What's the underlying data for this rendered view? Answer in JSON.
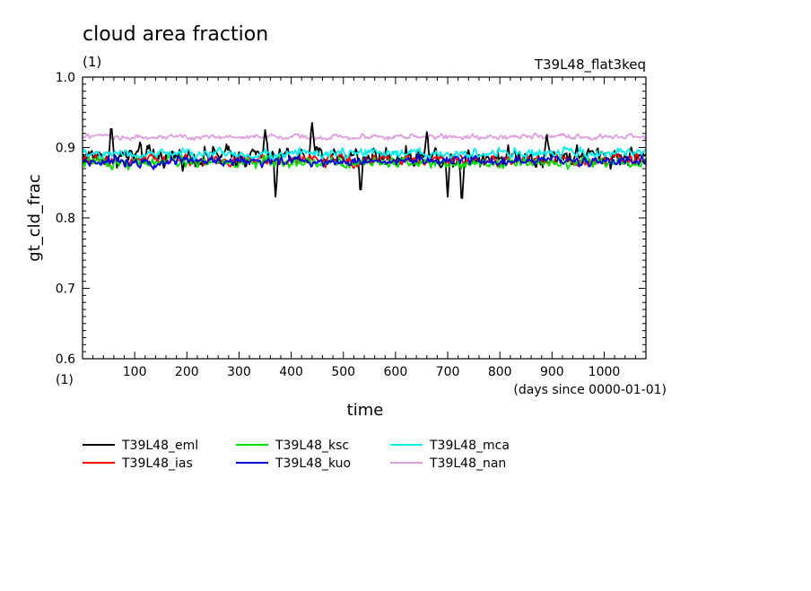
{
  "chart_data": {
    "type": "line",
    "title": "cloud area fraction",
    "units": "(1)",
    "experiment": "T39L48_flat3keq",
    "xlabel": "time",
    "xunits": "(days since 0000-01-01)",
    "ylabel": "gt_cld_frac",
    "yunits": "(1)",
    "xlim": [
      0,
      1080
    ],
    "ylim": [
      0.6,
      1.0
    ],
    "xticks": [
      100,
      200,
      300,
      400,
      500,
      600,
      700,
      800,
      900,
      1000
    ],
    "xtick_labels": [
      "100",
      "200",
      "300",
      "400",
      "500",
      "600",
      "700",
      "800",
      "900",
      "1000"
    ],
    "yticks": [
      0.6,
      0.7,
      0.8,
      0.9,
      1.0
    ],
    "ytick_labels": [
      "0.6",
      "0.7",
      "0.8",
      "0.9",
      "1.0"
    ],
    "grid": false,
    "legend_position": "bottom",
    "series": [
      {
        "name": "T39L48_eml",
        "color": "#000000",
        "mean": 0.888,
        "amplitude": 0.022,
        "dips": [
          [
            370,
            0.83
          ],
          [
            533,
            0.835
          ],
          [
            700,
            0.83
          ],
          [
            727,
            0.822
          ]
        ],
        "peaks": [
          [
            55,
            0.93
          ],
          [
            440,
            0.935
          ],
          [
            350,
            0.925
          ],
          [
            660,
            0.922
          ],
          [
            890,
            0.918
          ]
        ]
      },
      {
        "name": "T39L48_ias",
        "color": "#ff0000",
        "mean": 0.882,
        "amplitude": 0.012,
        "dips": [],
        "peaks": []
      },
      {
        "name": "T39L48_ksc",
        "color": "#00dd00",
        "mean": 0.879,
        "amplitude": 0.012,
        "dips": [],
        "peaks": []
      },
      {
        "name": "T39L48_kuo",
        "color": "#0000dd",
        "mean": 0.881,
        "amplitude": 0.011,
        "dips": [],
        "peaks": []
      },
      {
        "name": "T39L48_mca",
        "color": "#00eeee",
        "mean": 0.891,
        "amplitude": 0.011,
        "dips": [],
        "peaks": []
      },
      {
        "name": "T39L48_nan",
        "color": "#dda0dd",
        "mean": 0.915,
        "amplitude": 0.006,
        "dips": [],
        "peaks": []
      }
    ]
  }
}
